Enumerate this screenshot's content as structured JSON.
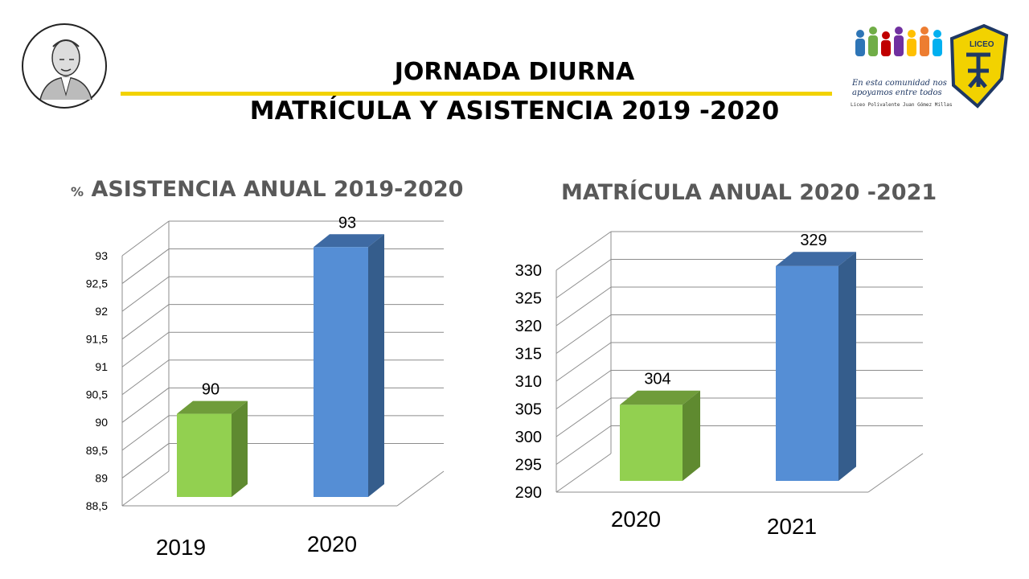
{
  "header": {
    "title": "JORNADA DIURNA",
    "subtitle": "MATRÍCULA Y ASISTENCIA 2019 -2020"
  },
  "logo": {
    "tagline_1": "En esta comunidad nos",
    "tagline_2": "apoyamos entre todos",
    "school_name": "Liceo Polivalente Juan Gómez Millas",
    "badge_text": "LICEO",
    "accent_color": "#f2d200"
  },
  "colors": {
    "green": "#92d050",
    "blue": "#558ed5",
    "axis_text": "#000000"
  },
  "chart_data": [
    {
      "type": "bar",
      "title_prefix": "%",
      "title": "ASISTENCIA ANUAL 2019-2020",
      "categories": [
        "2019",
        "2020"
      ],
      "values": [
        90,
        93
      ],
      "data_labels": [
        "90",
        "93"
      ],
      "ylim": [
        88.5,
        93
      ],
      "yticks": [
        "88,5",
        "89",
        "89,5",
        "90",
        "90,5",
        "91",
        "91,5",
        "92",
        "92,5",
        "93"
      ],
      "grid": true,
      "three_d": true
    },
    {
      "type": "bar",
      "title": "MATRÍCULA ANUAL 2020 -2021",
      "categories": [
        "2020",
        "2021"
      ],
      "values": [
        304,
        329
      ],
      "data_labels": [
        "304",
        "329"
      ],
      "ylim": [
        290,
        330
      ],
      "yticks": [
        "290",
        "295",
        "300",
        "305",
        "310",
        "315",
        "320",
        "325",
        "330"
      ],
      "grid": true,
      "three_d": true
    }
  ]
}
